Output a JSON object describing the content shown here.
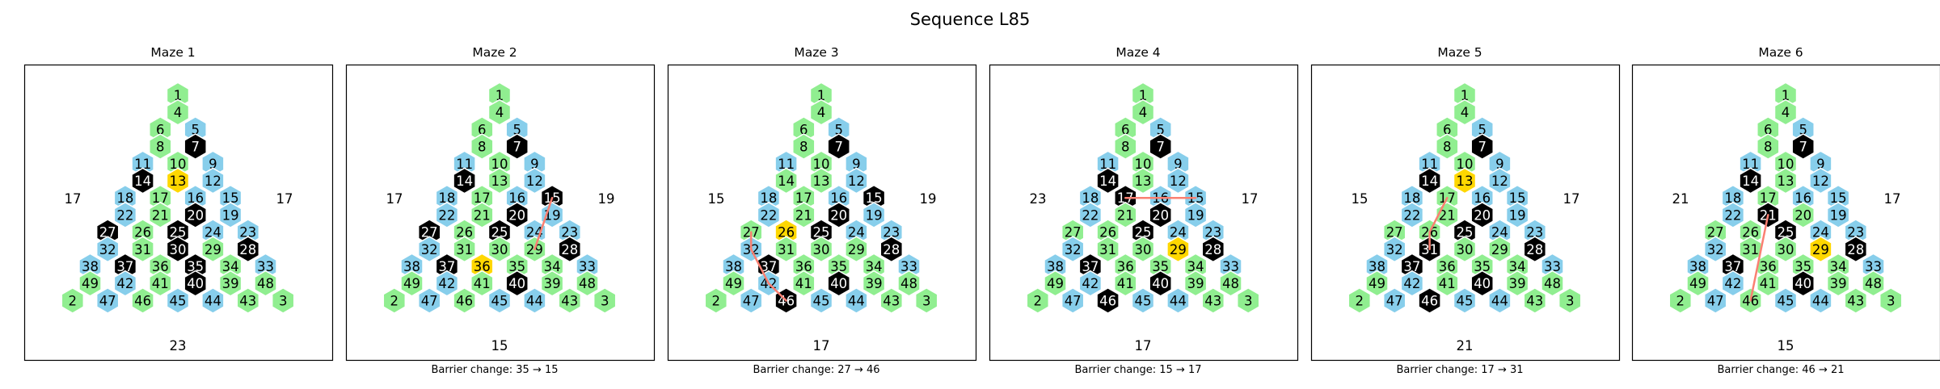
{
  "title": "Sequence L85",
  "colors": {
    "normal": "#90EE90",
    "edge": "#87CEEB",
    "barrier": "#000000",
    "highlight": "#FFD700",
    "path": "#FA8072"
  },
  "layout_rows": [
    [
      1
    ],
    [
      4
    ],
    [
      6,
      5
    ],
    [
      8,
      7
    ],
    [
      11,
      10,
      9
    ],
    [
      14,
      13,
      12
    ],
    [
      18,
      17,
      16,
      15
    ],
    [
      22,
      21,
      20,
      19
    ],
    [
      27,
      26,
      25,
      24,
      23
    ],
    [
      32,
      31,
      30,
      29,
      28
    ],
    [
      38,
      37,
      36,
      35,
      34,
      33
    ],
    [
      49,
      42,
      41,
      40,
      39,
      48
    ],
    [
      2,
      47,
      46,
      45,
      44,
      43,
      3
    ]
  ],
  "edge_cells": [
    5,
    9,
    11,
    12,
    15,
    16,
    18,
    19,
    22,
    23,
    24,
    28,
    32,
    33,
    38,
    42,
    45,
    44,
    47
  ],
  "mazes": [
    {
      "title": "Maze 1",
      "left_label": "17",
      "right_label": "17",
      "bottom_label": "23",
      "caption": "",
      "barriers": [
        7,
        14,
        20,
        25,
        27,
        35,
        37,
        40,
        28,
        30
      ],
      "highlight": [
        13
      ],
      "path": []
    },
    {
      "title": "Maze 2",
      "left_label": "17",
      "right_label": "19",
      "bottom_label": "15",
      "caption": "Barrier change: 35 → 15",
      "barriers": [
        7,
        14,
        15,
        20,
        25,
        27,
        37,
        40,
        28
      ],
      "highlight": [
        36
      ],
      "path": [
        29,
        15
      ]
    },
    {
      "title": "Maze 3",
      "left_label": "15",
      "right_label": "19",
      "bottom_label": "17",
      "caption": "Barrier change: 27 → 46",
      "barriers": [
        7,
        15,
        20,
        25,
        37,
        40,
        28,
        46
      ],
      "highlight": [
        26
      ],
      "path": [
        27,
        32,
        42,
        46
      ]
    },
    {
      "title": "Maze 4",
      "left_label": "23",
      "right_label": "17",
      "bottom_label": "17",
      "caption": "Barrier change: 15 → 17",
      "barriers": [
        7,
        14,
        17,
        20,
        25,
        37,
        40,
        28,
        46
      ],
      "highlight": [
        29
      ],
      "path": [
        17,
        16,
        15
      ]
    },
    {
      "title": "Maze 5",
      "left_label": "15",
      "right_label": "17",
      "bottom_label": "21",
      "caption": "Barrier change: 17 → 31",
      "barriers": [
        7,
        14,
        20,
        25,
        31,
        37,
        40,
        28,
        46
      ],
      "highlight": [
        13
      ],
      "path": [
        17,
        26,
        31
      ]
    },
    {
      "title": "Maze 6",
      "left_label": "21",
      "right_label": "17",
      "bottom_label": "15",
      "caption": "Barrier change: 46 → 21",
      "barriers": [
        7,
        14,
        21,
        25,
        37,
        40,
        28
      ],
      "highlight": [
        29
      ],
      "path": [
        21,
        46
      ]
    }
  ]
}
